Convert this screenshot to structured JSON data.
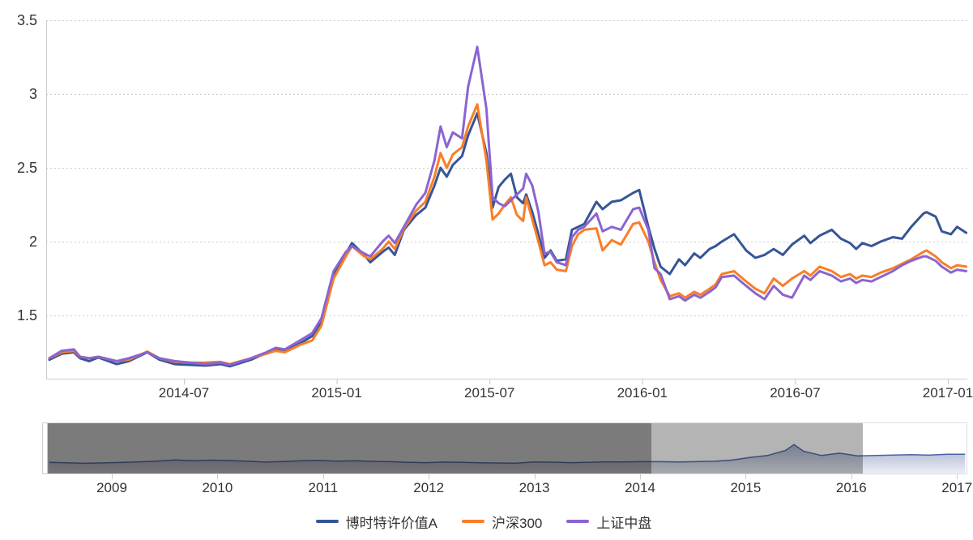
{
  "page": {
    "background": "#ffffff",
    "text_color": "#333333",
    "grid_color": "#cccccc"
  },
  "chart_data": {
    "type": "line",
    "title": "",
    "legend_position": "bottom",
    "grid": "dotted-horizontal",
    "y_axis": {
      "range": [
        1.07,
        3.5
      ],
      "ticks": [
        {
          "label": "3.5",
          "v": 3.5
        },
        {
          "label": "3",
          "v": 3.0
        },
        {
          "label": "2.5",
          "v": 2.5
        },
        {
          "label": "2",
          "v": 2.0
        },
        {
          "label": "1.5",
          "v": 1.5
        }
      ]
    },
    "x_axis": {
      "ticks": [
        {
          "label": "2014-07",
          "t": 2014.5
        },
        {
          "label": "2015-01",
          "t": 2015.0
        },
        {
          "label": "2015-07",
          "t": 2015.5
        },
        {
          "label": "2016-01",
          "t": 2016.0
        },
        {
          "label": "2016-07",
          "t": 2016.5
        },
        {
          "label": "2017-01",
          "t": 2017.0
        }
      ]
    },
    "x": [
      2014.06,
      2014.1,
      2014.14,
      2014.16,
      2014.19,
      2014.22,
      2014.28,
      2014.32,
      2014.38,
      2014.42,
      2014.47,
      2014.52,
      2014.57,
      2014.62,
      2014.65,
      2014.72,
      2014.77,
      2014.8,
      2014.83,
      2014.88,
      2014.92,
      2014.95,
      2014.99,
      2015.03,
      2015.05,
      2015.09,
      2015.11,
      2015.15,
      2015.17,
      2015.19,
      2015.22,
      2015.26,
      2015.29,
      2015.32,
      2015.34,
      2015.36,
      2015.38,
      2015.41,
      2015.43,
      2015.46,
      2015.49,
      2015.51,
      2015.53,
      2015.55,
      2015.57,
      2015.59,
      2015.61,
      2015.62,
      2015.64,
      2015.66,
      2015.68,
      2015.7,
      2015.72,
      2015.75,
      2015.77,
      2015.79,
      2015.81,
      2015.85,
      2015.87,
      2015.9,
      2015.93,
      2015.97,
      2015.99,
      2016.02,
      2016.04,
      2016.06,
      2016.09,
      2016.12,
      2016.14,
      2016.17,
      2016.19,
      2016.22,
      2016.24,
      2016.26,
      2016.3,
      2016.34,
      2016.37,
      2016.4,
      2016.43,
      2016.46,
      2016.49,
      2016.53,
      2016.55,
      2016.58,
      2016.62,
      2016.65,
      2016.68,
      2016.7,
      2016.72,
      2016.75,
      2016.78,
      2016.82,
      2016.85,
      2016.88,
      2016.92,
      2016.93,
      2016.96,
      2016.98,
      2017.01,
      2017.03,
      2017.06
    ],
    "series": [
      {
        "name": "博时特许价值A",
        "color": "#375596",
        "values": [
          1.2,
          1.24,
          1.25,
          1.21,
          1.19,
          1.215,
          1.17,
          1.19,
          1.25,
          1.2,
          1.17,
          1.165,
          1.16,
          1.17,
          1.155,
          1.2,
          1.245,
          1.27,
          1.26,
          1.31,
          1.36,
          1.45,
          1.78,
          1.92,
          1.99,
          1.91,
          1.86,
          1.93,
          1.96,
          1.91,
          2.08,
          2.18,
          2.23,
          2.38,
          2.5,
          2.44,
          2.52,
          2.58,
          2.72,
          2.87,
          2.6,
          2.23,
          2.37,
          2.42,
          2.46,
          2.3,
          2.26,
          2.32,
          2.2,
          2.05,
          1.89,
          1.94,
          1.87,
          1.88,
          2.08,
          2.1,
          2.12,
          2.27,
          2.22,
          2.27,
          2.28,
          2.33,
          2.35,
          2.1,
          1.95,
          1.83,
          1.78,
          1.88,
          1.84,
          1.92,
          1.89,
          1.95,
          1.97,
          2.0,
          2.05,
          1.94,
          1.89,
          1.91,
          1.95,
          1.91,
          1.98,
          2.04,
          1.99,
          2.04,
          2.08,
          2.02,
          1.99,
          1.95,
          1.99,
          1.97,
          2.0,
          2.03,
          2.02,
          2.1,
          2.19,
          2.2,
          2.17,
          2.07,
          2.05,
          2.1,
          2.06
        ]
      },
      {
        "name": "沪深300",
        "color": "#f97e26",
        "values": [
          1.21,
          1.25,
          1.26,
          1.22,
          1.21,
          1.22,
          1.19,
          1.2,
          1.255,
          1.21,
          1.185,
          1.18,
          1.18,
          1.185,
          1.17,
          1.21,
          1.24,
          1.26,
          1.25,
          1.3,
          1.33,
          1.43,
          1.75,
          1.9,
          1.97,
          1.9,
          1.88,
          1.95,
          2.0,
          1.95,
          2.09,
          2.21,
          2.27,
          2.44,
          2.6,
          2.5,
          2.59,
          2.64,
          2.78,
          2.93,
          2.55,
          2.15,
          2.19,
          2.25,
          2.3,
          2.18,
          2.14,
          2.3,
          2.15,
          2.0,
          1.84,
          1.86,
          1.81,
          1.8,
          1.97,
          2.05,
          2.08,
          2.09,
          1.94,
          2.01,
          1.98,
          2.12,
          2.13,
          2.0,
          1.86,
          1.74,
          1.63,
          1.65,
          1.62,
          1.66,
          1.64,
          1.68,
          1.71,
          1.78,
          1.8,
          1.73,
          1.68,
          1.65,
          1.75,
          1.7,
          1.75,
          1.8,
          1.77,
          1.83,
          1.8,
          1.76,
          1.78,
          1.75,
          1.77,
          1.76,
          1.79,
          1.82,
          1.85,
          1.88,
          1.93,
          1.94,
          1.9,
          1.86,
          1.82,
          1.84,
          1.83
        ]
      },
      {
        "name": "上证中盘",
        "color": "#8b64d2",
        "values": [
          1.21,
          1.26,
          1.27,
          1.22,
          1.21,
          1.22,
          1.19,
          1.21,
          1.25,
          1.21,
          1.19,
          1.18,
          1.17,
          1.18,
          1.165,
          1.21,
          1.25,
          1.28,
          1.27,
          1.33,
          1.38,
          1.48,
          1.8,
          1.93,
          1.97,
          1.92,
          1.9,
          2.0,
          2.04,
          1.99,
          2.1,
          2.25,
          2.33,
          2.55,
          2.78,
          2.64,
          2.74,
          2.7,
          3.05,
          3.32,
          2.9,
          2.3,
          2.26,
          2.24,
          2.28,
          2.32,
          2.36,
          2.46,
          2.38,
          2.2,
          1.92,
          1.93,
          1.86,
          1.84,
          2.03,
          2.08,
          2.1,
          2.19,
          2.07,
          2.1,
          2.08,
          2.22,
          2.23,
          2.08,
          1.82,
          1.78,
          1.61,
          1.63,
          1.6,
          1.64,
          1.62,
          1.66,
          1.69,
          1.76,
          1.77,
          1.7,
          1.65,
          1.61,
          1.7,
          1.64,
          1.62,
          1.77,
          1.74,
          1.8,
          1.77,
          1.73,
          1.75,
          1.72,
          1.74,
          1.73,
          1.76,
          1.8,
          1.84,
          1.87,
          1.9,
          1.9,
          1.87,
          1.83,
          1.79,
          1.81,
          1.8
        ]
      }
    ],
    "mini": {
      "type": "area",
      "line_color": "#4a63a8",
      "fill_top": "rgba(70,95,155,0.50)",
      "fill_bottom": "rgba(70,95,155,0.10)",
      "x": [
        2008.4,
        2008.57,
        2008.74,
        2008.91,
        2009.08,
        2009.25,
        2009.42,
        2009.59,
        2009.76,
        2009.93,
        2010.1,
        2010.27,
        2010.44,
        2010.61,
        2010.78,
        2010.95,
        2011.12,
        2011.29,
        2011.46,
        2011.63,
        2011.8,
        2011.97,
        2012.14,
        2012.31,
        2012.48,
        2012.65,
        2012.82,
        2012.99,
        2013.16,
        2013.33,
        2013.5,
        2013.67,
        2013.84,
        2014.01,
        2014.18,
        2014.35,
        2014.52,
        2014.69,
        2014.86,
        2015.03,
        2015.2,
        2015.37,
        2015.45,
        2015.54,
        2015.71,
        2015.88,
        2016.05,
        2016.22,
        2016.39,
        2016.56,
        2016.73,
        2016.9,
        2017.07
      ],
      "values": [
        1.02,
        0.96,
        0.9,
        0.95,
        1.0,
        1.08,
        1.18,
        1.32,
        1.22,
        1.3,
        1.25,
        1.18,
        1.05,
        1.12,
        1.22,
        1.28,
        1.18,
        1.22,
        1.15,
        1.1,
        1.02,
        0.98,
        1.05,
        1.02,
        0.96,
        0.94,
        0.92,
        1.06,
        1.04,
        0.98,
        1.02,
        1.08,
        1.06,
        1.1,
        1.1,
        1.06,
        1.1,
        1.16,
        1.3,
        1.65,
        1.9,
        2.55,
        3.3,
        2.45,
        1.9,
        2.2,
        1.85,
        1.9,
        1.95,
        2.0,
        1.95,
        2.05,
        2.05
      ],
      "x_ticks": [
        {
          "label": "2009",
          "t": 2009
        },
        {
          "label": "2010",
          "t": 2010
        },
        {
          "label": "2011",
          "t": 2011
        },
        {
          "label": "2012",
          "t": 2012
        },
        {
          "label": "2013",
          "t": 2013
        },
        {
          "label": "2014",
          "t": 2014
        },
        {
          "label": "2015",
          "t": 2015
        },
        {
          "label": "2016",
          "t": 2016
        },
        {
          "label": "2017",
          "t": 2017
        }
      ],
      "zones": [
        {
          "name": "zone-dark",
          "from": 2008.3,
          "to": 2014.1,
          "overlay": "rgba(35,35,35,0.60)"
        },
        {
          "name": "zone-medium",
          "from": 2014.1,
          "to": 2016.1,
          "overlay": "rgba(35,35,35,0.34)"
        }
      ]
    }
  },
  "legend": {
    "items": [
      {
        "label": "博时特许价值A",
        "color": "#375596"
      },
      {
        "label": "沪深300",
        "color": "#f97e26"
      },
      {
        "label": "上证中盘",
        "color": "#8b64d2"
      }
    ]
  }
}
